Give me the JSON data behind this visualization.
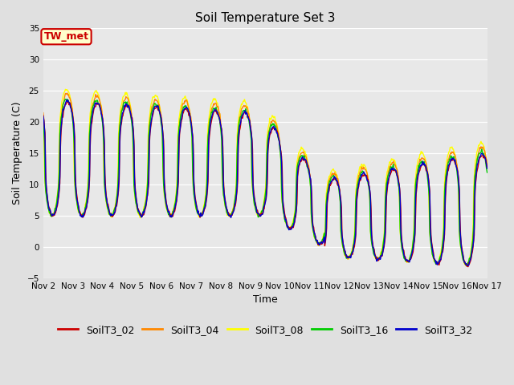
{
  "title": "Soil Temperature Set 3",
  "xlabel": "Time",
  "ylabel": "Soil Temperature (C)",
  "ylim": [
    -5,
    35
  ],
  "series_colors": {
    "SoilT3_02": "#cc0000",
    "SoilT3_04": "#ff8800",
    "SoilT3_08": "#ffff00",
    "SoilT3_16": "#00cc00",
    "SoilT3_32": "#0000cc"
  },
  "series_names": [
    "SoilT3_02",
    "SoilT3_04",
    "SoilT3_08",
    "SoilT3_16",
    "SoilT3_32"
  ],
  "annotation_text": "TW_met",
  "x_tick_labels": [
    "Nov 2",
    "Nov 3",
    "Nov 4",
    "Nov 5",
    "Nov 6",
    "Nov 7",
    "Nov 8",
    "Nov 9",
    "Nov 10",
    "Nov 11",
    "Nov 12",
    "Nov 13",
    "Nov 14",
    "Nov 15",
    "Nov 16",
    "Nov 17"
  ],
  "background_color": "#e0e0e0",
  "plot_bg_color": "#e8e8e8",
  "title_fontsize": 11,
  "axis_label_fontsize": 9,
  "tick_label_fontsize": 7.5,
  "legend_fontsize": 9,
  "line_width": 1.0
}
